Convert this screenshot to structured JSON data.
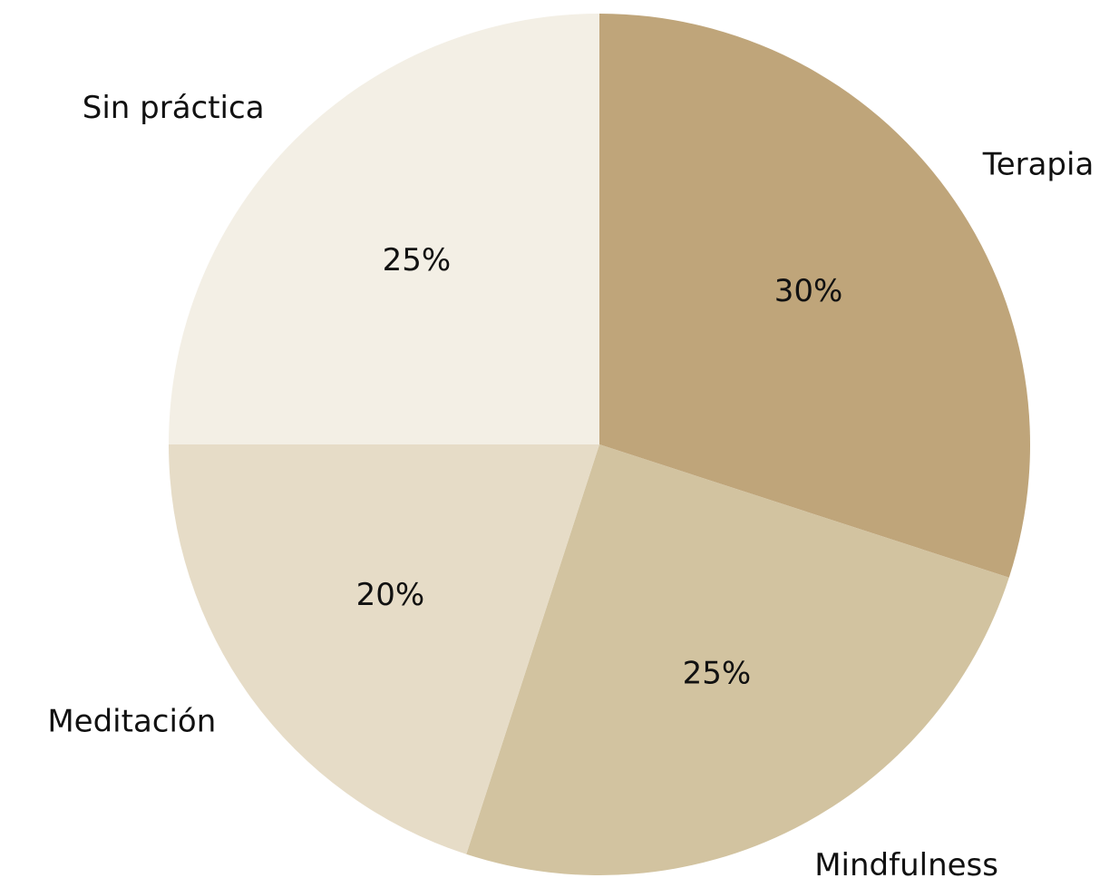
{
  "chart_data": {
    "type": "pie",
    "categories": [
      "Terapia",
      "Mindfulness",
      "Meditación",
      "Sin práctica"
    ],
    "values": [
      30,
      25,
      20,
      25
    ],
    "value_labels": [
      "30%",
      "25%",
      "20%",
      "25%"
    ],
    "colors": [
      "#bfa57a",
      "#d2c3a0",
      "#e6dcc7",
      "#f3efe5"
    ],
    "start_angle": 90,
    "direction": "clockwise"
  }
}
